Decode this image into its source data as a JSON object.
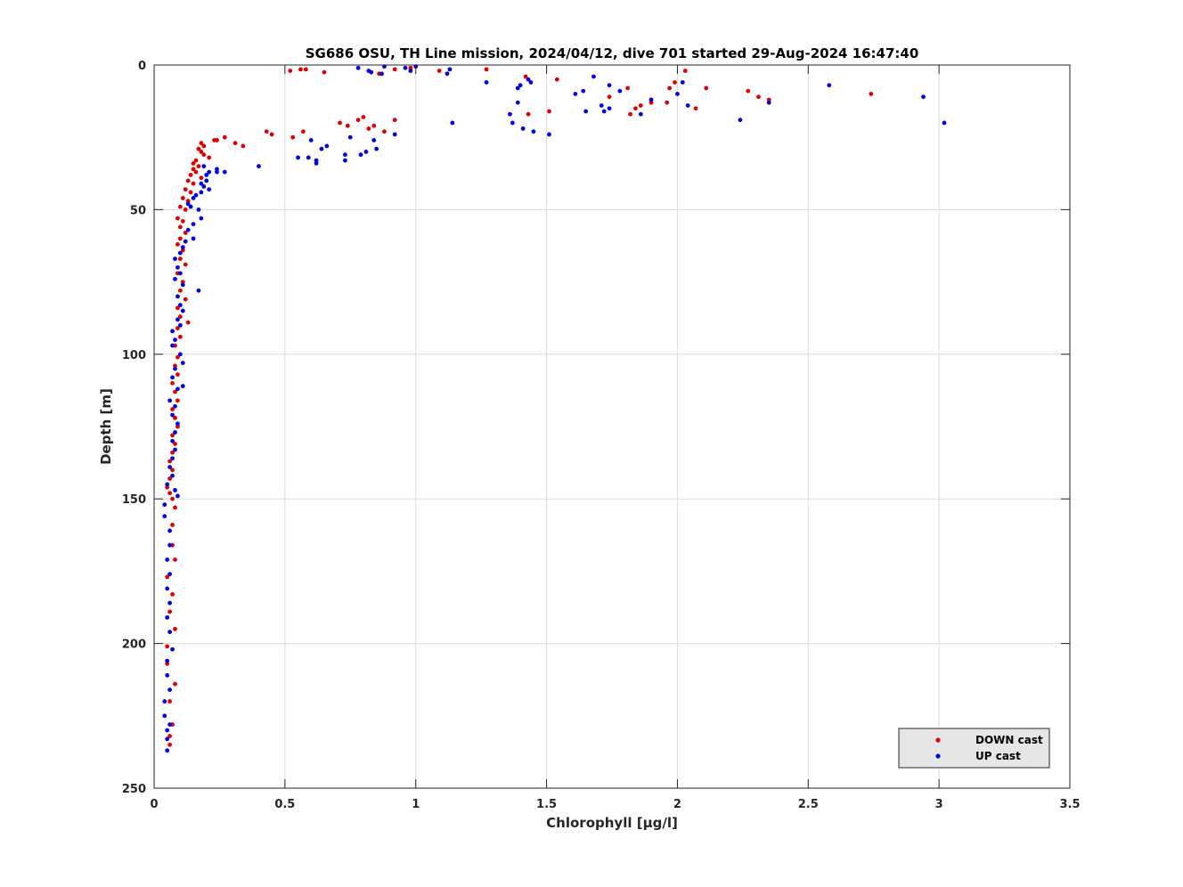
{
  "chart_data": {
    "type": "scatter",
    "title": "SG686 OSU, TH Line mission, 2024/04/12, dive 701 started 29-Aug-2024 16:47:40",
    "xlabel": "Chlorophyll [μg/l]",
    "ylabel": "Depth [m]",
    "xlim": [
      0,
      3.5
    ],
    "ylim": [
      0,
      250
    ],
    "y_reversed": true,
    "xticks": [
      0,
      0.5,
      1,
      1.5,
      2,
      2.5,
      3,
      3.5
    ],
    "xtick_labels": [
      "0",
      "0.5",
      "1",
      "1.5",
      "2",
      "2.5",
      "3",
      "3.5"
    ],
    "yticks": [
      0,
      50,
      100,
      150,
      200,
      250
    ],
    "ytick_labels": [
      "0",
      "50",
      "100",
      "150",
      "200",
      "250"
    ],
    "grid": true,
    "legend_position": "bottom-right",
    "series": [
      {
        "name": "DOWN cast",
        "color": "#e00000",
        "points": [
          [
            0.52,
            2
          ],
          [
            0.56,
            1.5
          ],
          [
            0.58,
            1.5
          ],
          [
            0.65,
            2.5
          ],
          [
            0.86,
            3
          ],
          [
            0.92,
            1.5
          ],
          [
            0.98,
            1
          ],
          [
            1.09,
            2
          ],
          [
            1.27,
            1.5
          ],
          [
            1.42,
            4
          ],
          [
            1.54,
            5
          ],
          [
            1.43,
            17
          ],
          [
            1.51,
            16
          ],
          [
            1.74,
            11
          ],
          [
            1.81,
            8
          ],
          [
            1.82,
            17
          ],
          [
            1.84,
            15
          ],
          [
            1.86,
            14
          ],
          [
            1.9,
            13
          ],
          [
            1.96,
            13
          ],
          [
            1.97,
            8
          ],
          [
            1.99,
            6
          ],
          [
            2.03,
            2
          ],
          [
            2.07,
            15
          ],
          [
            2.11,
            8
          ],
          [
            2.27,
            9
          ],
          [
            2.31,
            11
          ],
          [
            2.35,
            12
          ],
          [
            2.74,
            10
          ],
          [
            0.92,
            19
          ],
          [
            0.88,
            23
          ],
          [
            0.84,
            21
          ],
          [
            0.82,
            22
          ],
          [
            0.8,
            18
          ],
          [
            0.78,
            19
          ],
          [
            0.74,
            21
          ],
          [
            0.71,
            20
          ],
          [
            0.57,
            23
          ],
          [
            0.53,
            25
          ],
          [
            0.45,
            24
          ],
          [
            0.43,
            23
          ],
          [
            0.34,
            28
          ],
          [
            0.31,
            27
          ],
          [
            0.27,
            25
          ],
          [
            0.24,
            26
          ],
          [
            0.23,
            26
          ],
          [
            0.19,
            28
          ],
          [
            0.18,
            27
          ],
          [
            0.17,
            29
          ],
          [
            0.18,
            30
          ],
          [
            0.19,
            31
          ],
          [
            0.21,
            32
          ],
          [
            0.16,
            33
          ],
          [
            0.15,
            34
          ],
          [
            0.15,
            36
          ],
          [
            0.17,
            35
          ],
          [
            0.16,
            37
          ],
          [
            0.14,
            38
          ],
          [
            0.13,
            40
          ],
          [
            0.18,
            39
          ],
          [
            0.15,
            41
          ],
          [
            0.12,
            43
          ],
          [
            0.14,
            44
          ],
          [
            0.11,
            46
          ],
          [
            0.13,
            47
          ],
          [
            0.1,
            49
          ],
          [
            0.12,
            50
          ],
          [
            0.09,
            53
          ],
          [
            0.11,
            54
          ],
          [
            0.1,
            56
          ],
          [
            0.12,
            58
          ],
          [
            0.1,
            60
          ],
          [
            0.09,
            62
          ],
          [
            0.11,
            64
          ],
          [
            0.1,
            67
          ],
          [
            0.12,
            69
          ],
          [
            0.09,
            72
          ],
          [
            0.11,
            75
          ],
          [
            0.1,
            78
          ],
          [
            0.12,
            81
          ],
          [
            0.09,
            84
          ],
          [
            0.1,
            87
          ],
          [
            0.13,
            89
          ],
          [
            0.09,
            91
          ],
          [
            0.1,
            94
          ],
          [
            0.08,
            97
          ],
          [
            0.09,
            101
          ],
          [
            0.08,
            104
          ],
          [
            0.09,
            107
          ],
          [
            0.07,
            110
          ],
          [
            0.08,
            113
          ],
          [
            0.09,
            116
          ],
          [
            0.07,
            119
          ],
          [
            0.08,
            122
          ],
          [
            0.09,
            125
          ],
          [
            0.07,
            128
          ],
          [
            0.08,
            131
          ],
          [
            0.07,
            134
          ],
          [
            0.06,
            137
          ],
          [
            0.07,
            140
          ],
          [
            0.06,
            143
          ],
          [
            0.05,
            146
          ],
          [
            0.06,
            148
          ],
          [
            0.07,
            150
          ],
          [
            0.08,
            153
          ],
          [
            0.07,
            159
          ],
          [
            0.07,
            166
          ],
          [
            0.08,
            171
          ],
          [
            0.05,
            177
          ],
          [
            0.07,
            183
          ],
          [
            0.06,
            189
          ],
          [
            0.08,
            195
          ],
          [
            0.05,
            201
          ],
          [
            0.05,
            207
          ],
          [
            0.08,
            214
          ],
          [
            0.06,
            220
          ],
          [
            0.07,
            228
          ],
          [
            0.06,
            232
          ],
          [
            0.06,
            235
          ]
        ]
      },
      {
        "name": "UP cast",
        "color": "#0000e0",
        "points": [
          [
            0.78,
            1
          ],
          [
            0.82,
            2
          ],
          [
            0.83,
            2.5
          ],
          [
            0.87,
            3
          ],
          [
            0.88,
            0.5
          ],
          [
            0.96,
            1
          ],
          [
            0.98,
            2
          ],
          [
            1.0,
            0.5
          ],
          [
            1.12,
            3
          ],
          [
            1.13,
            1.5
          ],
          [
            1.27,
            6
          ],
          [
            1.39,
            8
          ],
          [
            1.4,
            7
          ],
          [
            1.39,
            13
          ],
          [
            1.43,
            5
          ],
          [
            1.44,
            6
          ],
          [
            1.36,
            17
          ],
          [
            1.37,
            20
          ],
          [
            1.41,
            22
          ],
          [
            1.45,
            23
          ],
          [
            1.51,
            24
          ],
          [
            1.14,
            20
          ],
          [
            1.61,
            10
          ],
          [
            1.64,
            9
          ],
          [
            1.65,
            16
          ],
          [
            1.68,
            4
          ],
          [
            1.71,
            14
          ],
          [
            1.72,
            16
          ],
          [
            1.74,
            15
          ],
          [
            1.74,
            7
          ],
          [
            1.78,
            9
          ],
          [
            1.86,
            17
          ],
          [
            1.9,
            12
          ],
          [
            2.0,
            10
          ],
          [
            2.02,
            6
          ],
          [
            2.04,
            14
          ],
          [
            2.24,
            19
          ],
          [
            2.35,
            13
          ],
          [
            2.58,
            7
          ],
          [
            2.94,
            11
          ],
          [
            3.02,
            20
          ],
          [
            0.92,
            24
          ],
          [
            0.85,
            29
          ],
          [
            0.84,
            26
          ],
          [
            0.81,
            30
          ],
          [
            0.79,
            31
          ],
          [
            0.75,
            25
          ],
          [
            0.73,
            31
          ],
          [
            0.73,
            33
          ],
          [
            0.66,
            28
          ],
          [
            0.64,
            29
          ],
          [
            0.62,
            34
          ],
          [
            0.62,
            33
          ],
          [
            0.6,
            26
          ],
          [
            0.59,
            32
          ],
          [
            0.55,
            32
          ],
          [
            0.4,
            35
          ],
          [
            0.27,
            37
          ],
          [
            0.24,
            37
          ],
          [
            0.24,
            36
          ],
          [
            0.21,
            37
          ],
          [
            0.2,
            38
          ],
          [
            0.19,
            35
          ],
          [
            0.2,
            40
          ],
          [
            0.18,
            41
          ],
          [
            0.21,
            43
          ],
          [
            0.18,
            44
          ],
          [
            0.16,
            45
          ],
          [
            0.19,
            42
          ],
          [
            0.15,
            46
          ],
          [
            0.13,
            48
          ],
          [
            0.14,
            49
          ],
          [
            0.17,
            50
          ],
          [
            0.18,
            53
          ],
          [
            0.15,
            55
          ],
          [
            0.13,
            57
          ],
          [
            0.15,
            60
          ],
          [
            0.12,
            61
          ],
          [
            0.11,
            63
          ],
          [
            0.1,
            65
          ],
          [
            0.08,
            67
          ],
          [
            0.09,
            70
          ],
          [
            0.1,
            72
          ],
          [
            0.08,
            74
          ],
          [
            0.11,
            76
          ],
          [
            0.17,
            78
          ],
          [
            0.09,
            80
          ],
          [
            0.1,
            83
          ],
          [
            0.11,
            85
          ],
          [
            0.09,
            88
          ],
          [
            0.1,
            90
          ],
          [
            0.07,
            92
          ],
          [
            0.08,
            95
          ],
          [
            0.07,
            97
          ],
          [
            0.1,
            100
          ],
          [
            0.11,
            103
          ],
          [
            0.08,
            105
          ],
          [
            0.07,
            108
          ],
          [
            0.11,
            111
          ],
          [
            0.09,
            112
          ],
          [
            0.06,
            116
          ],
          [
            0.08,
            118
          ],
          [
            0.07,
            121
          ],
          [
            0.09,
            124
          ],
          [
            0.08,
            127
          ],
          [
            0.07,
            130
          ],
          [
            0.08,
            133
          ],
          [
            0.07,
            136
          ],
          [
            0.06,
            139
          ],
          [
            0.07,
            142
          ],
          [
            0.05,
            145
          ],
          [
            0.08,
            147
          ],
          [
            0.09,
            149
          ],
          [
            0.04,
            152
          ],
          [
            0.04,
            156
          ],
          [
            0.06,
            161
          ],
          [
            0.06,
            166
          ],
          [
            0.05,
            171
          ],
          [
            0.06,
            176
          ],
          [
            0.05,
            181
          ],
          [
            0.06,
            186
          ],
          [
            0.05,
            191
          ],
          [
            0.06,
            196
          ],
          [
            0.07,
            202
          ],
          [
            0.05,
            206
          ],
          [
            0.05,
            211
          ],
          [
            0.06,
            216
          ],
          [
            0.04,
            220
          ],
          [
            0.04,
            225
          ],
          [
            0.06,
            228
          ],
          [
            0.05,
            230
          ],
          [
            0.05,
            233
          ],
          [
            0.05,
            237
          ]
        ]
      }
    ]
  }
}
